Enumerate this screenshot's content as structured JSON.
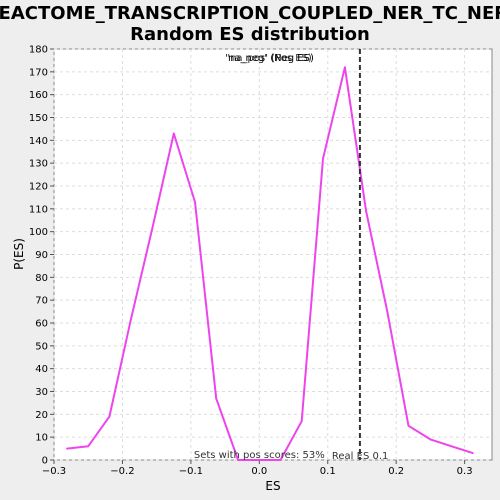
{
  "chart_data": {
    "type": "line",
    "title_line1": "REACTOME_TRANSCRIPTION_COUPLED_NER_TC_NER:",
    "title_line2": "Random ES distribution",
    "xlabel": "ES",
    "ylabel": "P(ES)",
    "xlim": [
      -0.3,
      0.34
    ],
    "ylim": [
      0,
      180
    ],
    "x_ticks": [
      -0.3,
      -0.2,
      -0.1,
      0.0,
      0.1,
      0.2,
      0.3
    ],
    "x_tick_labels": [
      "−0.3",
      "−0.2",
      "−0.1",
      "0.0",
      "0.1",
      "0.2",
      "0.3"
    ],
    "y_ticks": [
      0,
      10,
      20,
      30,
      40,
      50,
      60,
      70,
      80,
      90,
      100,
      110,
      120,
      130,
      140,
      150,
      160,
      170,
      180
    ],
    "grid": true,
    "legend": {
      "labels": [
        "'na_neg' (Neg ES)",
        "'na_pos' (Pos ES)"
      ],
      "colors": [
        "#9a3fe0",
        "#e040e0"
      ],
      "placement": "top-center"
    },
    "series": [
      {
        "color": "#ee44ee",
        "x": [
          -0.281,
          -0.25,
          -0.219,
          -0.188,
          -0.156,
          -0.125,
          -0.094,
          -0.063,
          -0.031,
          0.0,
          0.031,
          0.062,
          0.093,
          0.125,
          0.156,
          0.187,
          0.218,
          0.25,
          0.281,
          0.312
        ],
        "y": [
          5,
          6,
          19,
          61,
          102,
          143,
          113,
          27,
          0,
          0,
          0,
          17,
          132,
          172,
          109,
          65,
          15,
          9,
          6,
          3
        ]
      }
    ],
    "real_es": {
      "x": 0.147,
      "label": "Real ES 0.1"
    },
    "pos_score_note": "Sets with pos scores: 53%"
  }
}
